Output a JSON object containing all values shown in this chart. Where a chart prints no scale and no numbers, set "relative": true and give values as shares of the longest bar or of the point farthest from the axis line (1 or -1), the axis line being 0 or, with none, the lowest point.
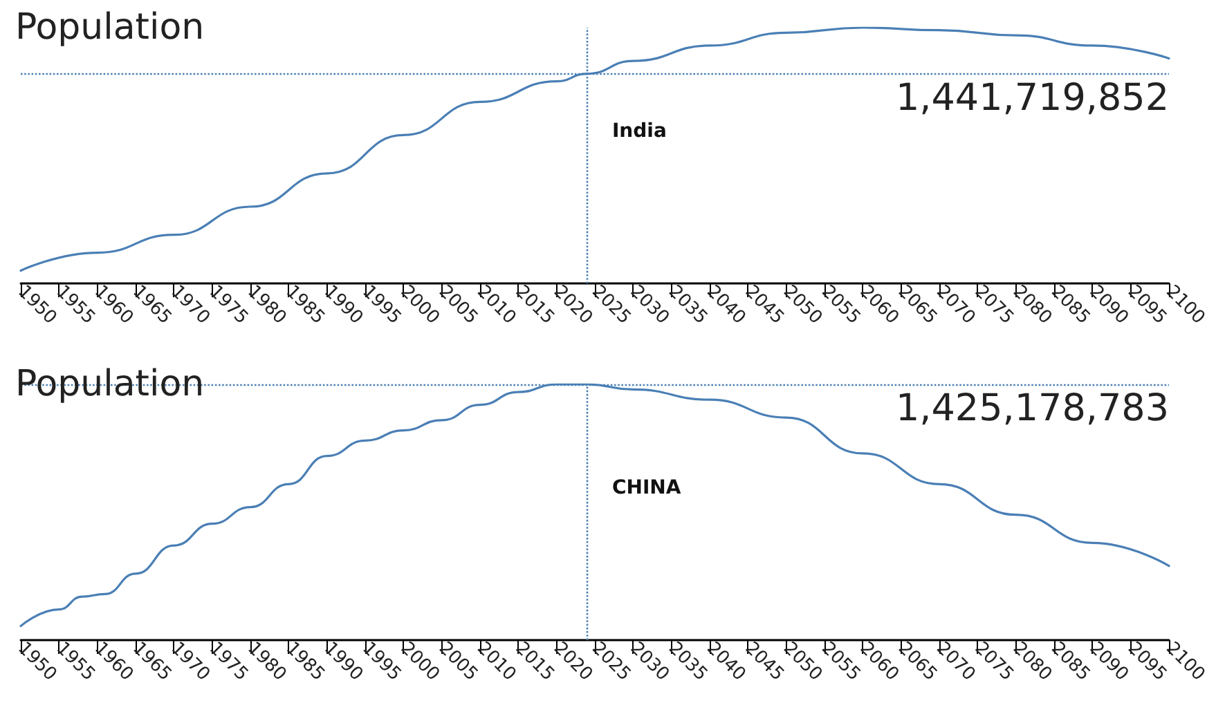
{
  "chart_data": [
    {
      "type": "line",
      "title": "Population",
      "relative": true,
      "x": [
        1950,
        1960,
        1970,
        1980,
        1990,
        2000,
        2010,
        2020,
        2024,
        2030,
        2040,
        2050,
        2060,
        2070,
        2080,
        2090,
        2100
      ],
      "series": [
        {
          "color": "#4a7fb5",
          "values": [
            0.05,
            0.12,
            0.19,
            0.3,
            0.43,
            0.58,
            0.71,
            0.79,
            0.82,
            0.87,
            0.93,
            0.98,
            1.0,
            0.99,
            0.97,
            0.93,
            0.88
          ]
        }
      ],
      "xlim": [
        1950,
        2100
      ],
      "xticks": [
        1950,
        1955,
        1960,
        1965,
        1970,
        1975,
        1980,
        1985,
        1990,
        1995,
        2000,
        2005,
        2010,
        2015,
        2020,
        2025,
        2030,
        2035,
        2040,
        2045,
        2050,
        2055,
        2060,
        2065,
        2070,
        2075,
        2080,
        2085,
        2090,
        2095,
        2100
      ],
      "ref_lines": [
        {
          "axis": "x",
          "value": 2024,
          "label": null,
          "color": "#4a7fb5",
          "line_style": "dotted"
        },
        {
          "axis": "y",
          "value": 0.82,
          "label": null,
          "color": "#4a7fb5",
          "line_style": "dotted"
        }
      ],
      "annotations": [
        "India",
        "1,441,719,852"
      ],
      "tick_labels": "x",
      "grid": false,
      "marker": "none",
      "line_style": "solid"
    },
    {
      "type": "line",
      "title": "Population",
      "relative": true,
      "x": [
        1950,
        1955,
        1958,
        1961,
        1965,
        1970,
        1975,
        1980,
        1985,
        1990,
        1995,
        2000,
        2005,
        2010,
        2015,
        2020,
        2024,
        2030,
        2040,
        2050,
        2060,
        2070,
        2080,
        2090,
        2100
      ],
      "series": [
        {
          "color": "#4a7fb5",
          "values": [
            0.055,
            0.12,
            0.17,
            0.18,
            0.26,
            0.37,
            0.455,
            0.52,
            0.61,
            0.72,
            0.78,
            0.82,
            0.86,
            0.92,
            0.97,
            1.0,
            1.0,
            0.98,
            0.94,
            0.87,
            0.73,
            0.61,
            0.49,
            0.38,
            0.29
          ]
        }
      ],
      "xlim": [
        1950,
        2100
      ],
      "xticks": [
        1950,
        1955,
        1960,
        1965,
        1970,
        1975,
        1980,
        1985,
        1990,
        1995,
        2000,
        2005,
        2010,
        2015,
        2020,
        2025,
        2030,
        2035,
        2040,
        2045,
        2050,
        2055,
        2060,
        2065,
        2070,
        2075,
        2080,
        2085,
        2090,
        2095,
        2100
      ],
      "ref_lines": [
        {
          "axis": "x",
          "value": 2024,
          "label": null,
          "color": "#4a7fb5",
          "line_style": "dotted"
        },
        {
          "axis": "y",
          "value": 1.0,
          "label": null,
          "color": "#4a7fb5",
          "line_style": "dotted"
        }
      ],
      "annotations": [
        "CHINA",
        "1,425,178,783"
      ],
      "tick_labels": "x",
      "grid": false,
      "marker": "none",
      "line_style": "solid"
    }
  ]
}
